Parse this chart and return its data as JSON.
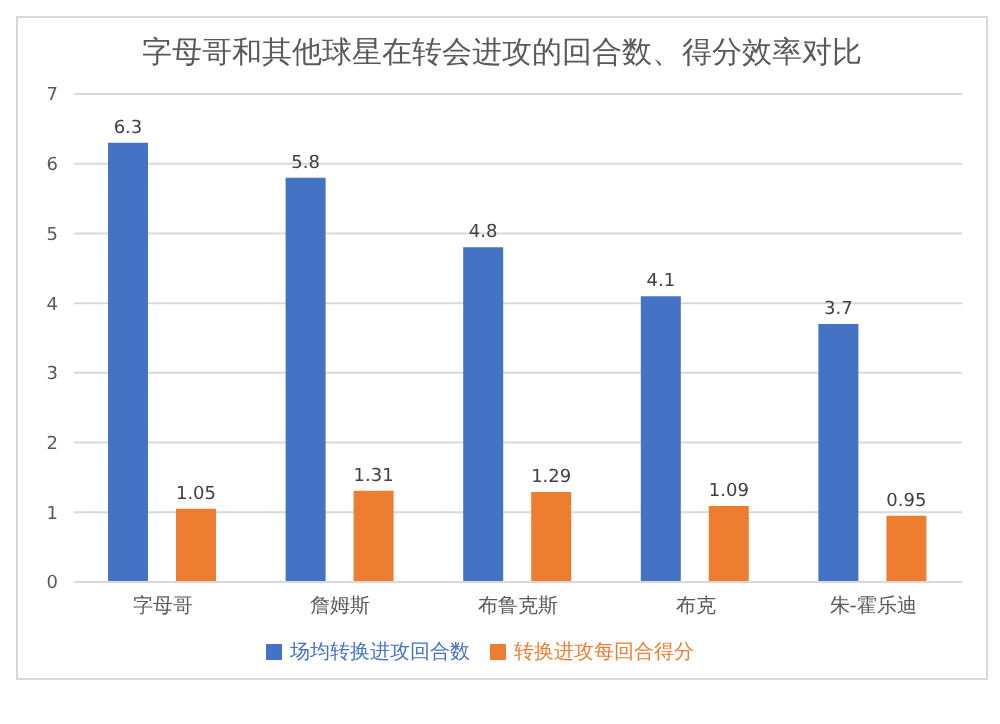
{
  "chart_data": {
    "type": "bar",
    "title": "字母哥和其他球星在转会进攻的回合数、得分效率对比",
    "categories": [
      "字母哥",
      "詹姆斯",
      "布鲁克斯",
      "布克",
      "朱-霍乐迪"
    ],
    "series": [
      {
        "name": "场均转换进攻回合数",
        "color": "#4472c4",
        "values": [
          6.3,
          5.8,
          4.8,
          4.1,
          3.7
        ]
      },
      {
        "name": "转换进攻每回合得分",
        "color": "#ed7d31",
        "values": [
          1.05,
          1.31,
          1.29,
          1.09,
          0.95
        ]
      }
    ],
    "ylim": [
      0,
      7
    ],
    "yticks": [
      0,
      1,
      2,
      3,
      4,
      5,
      6,
      7
    ],
    "grid": "y",
    "legend": "bottom",
    "data_labels": true
  }
}
